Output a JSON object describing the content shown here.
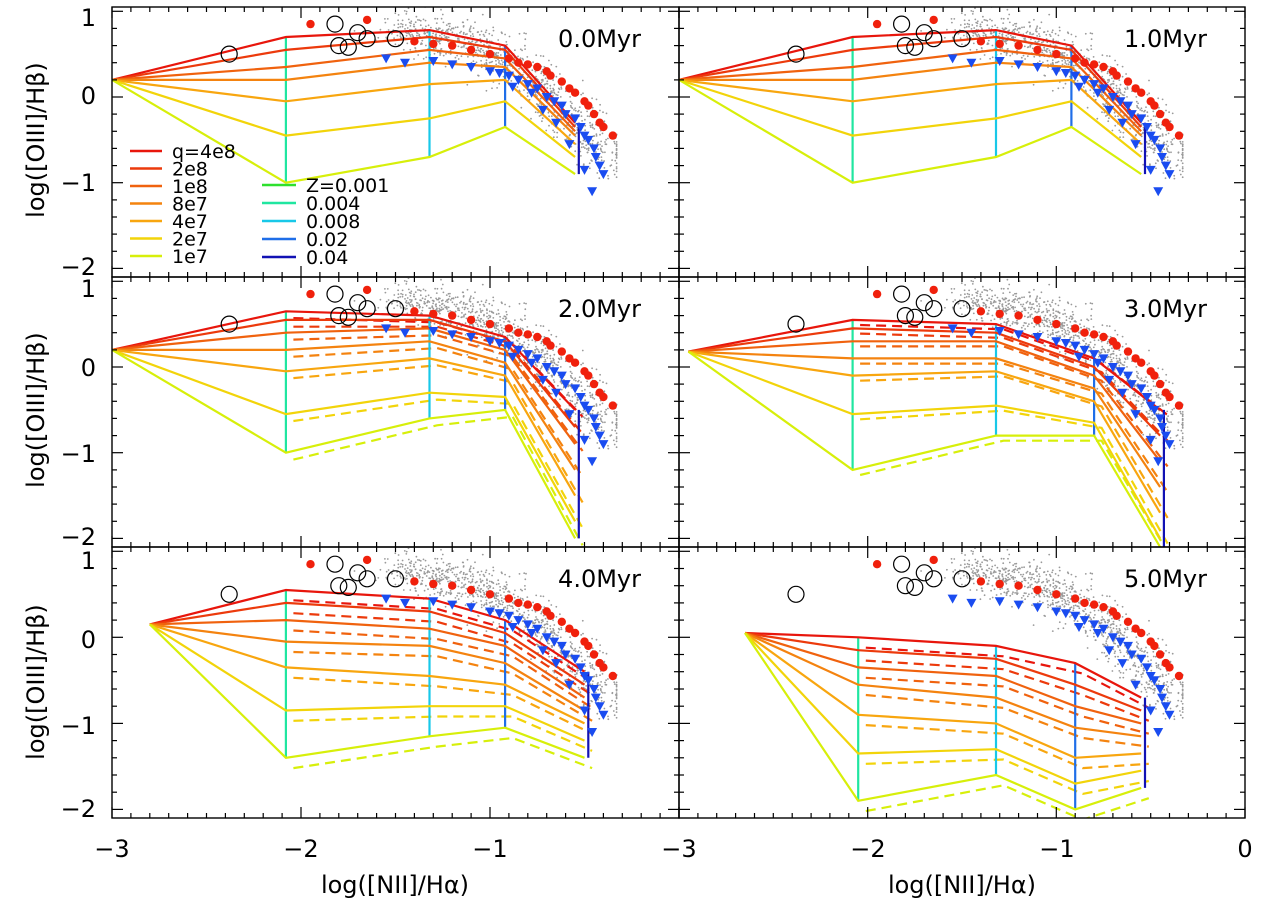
{
  "figure": {
    "xlabel": "log([NII]/Hα)",
    "ylabel": "log([OIII]/Hβ)",
    "xlim": [
      -3,
      0
    ],
    "ylim": [
      -2.1,
      1.05
    ],
    "x_ticks": [
      "−3",
      "−2",
      "−1",
      "−3",
      "−2",
      "−1",
      "0"
    ],
    "y_ticks": [
      "1",
      "0",
      "−1",
      "−2"
    ]
  },
  "legend": {
    "q_label_prefix": "q=",
    "q_entries": [
      {
        "label": "4e8",
        "color": "#e8160c"
      },
      {
        "label": "2e8",
        "color": "#ec3a0c"
      },
      {
        "label": "1e8",
        "color": "#f0620e"
      },
      {
        "label": "8e7",
        "color": "#f4830f"
      },
      {
        "label": "4e7",
        "color": "#f8a60f"
      },
      {
        "label": "2e7",
        "color": "#f2d40a"
      },
      {
        "label": "1e7",
        "color": "#d7ef0a"
      }
    ],
    "z_label_prefix": "Z=",
    "z_entries": [
      {
        "label": "0.001",
        "color": "#2ee02e"
      },
      {
        "label": "0.004",
        "color": "#20e6a0"
      },
      {
        "label": "0.008",
        "color": "#18c8e8"
      },
      {
        "label": "0.02",
        "color": "#1f6ee8"
      },
      {
        "label": "0.04",
        "color": "#1212b4"
      }
    ]
  },
  "chart_data": [
    {
      "type": "line",
      "panel_label": "0.0Myr",
      "shift": {
        "x": 0.0,
        "y": 0.0,
        "steep": 0.0
      },
      "dashed_offset": 0.0,
      "x_by_Z": [
        -3.0,
        -2.08,
        -1.32,
        -0.92,
        -0.55
      ],
      "y_by_q_Z": [
        [
          0.2,
          0.7,
          0.78,
          0.6,
          -0.3
        ],
        [
          0.2,
          0.55,
          0.7,
          0.55,
          -0.35
        ],
        [
          0.2,
          0.35,
          0.55,
          0.45,
          -0.4
        ],
        [
          0.2,
          0.2,
          0.4,
          0.35,
          -0.45
        ],
        [
          0.2,
          -0.05,
          0.15,
          0.2,
          -0.55
        ],
        [
          0.2,
          -0.45,
          -0.25,
          -0.05,
          -0.7
        ],
        [
          0.2,
          -1.0,
          -0.7,
          -0.35,
          -0.9
        ]
      ]
    },
    {
      "type": "line",
      "panel_label": "1.0Myr",
      "shift": {
        "x": 0.0,
        "y": 0.0,
        "steep": 0.0
      },
      "dashed_offset": 0.0,
      "x_by_Z": [
        -3.0,
        -2.08,
        -1.32,
        -0.92,
        -0.55
      ],
      "y_by_q_Z": [
        [
          0.2,
          0.7,
          0.78,
          0.6,
          -0.3
        ],
        [
          0.2,
          0.55,
          0.7,
          0.55,
          -0.35
        ],
        [
          0.2,
          0.35,
          0.55,
          0.45,
          -0.4
        ],
        [
          0.2,
          0.2,
          0.4,
          0.35,
          -0.45
        ],
        [
          0.2,
          -0.05,
          0.15,
          0.2,
          -0.55
        ],
        [
          0.2,
          -0.45,
          -0.25,
          -0.05,
          -0.7
        ],
        [
          0.2,
          -1.0,
          -0.7,
          -0.35,
          -0.9
        ]
      ]
    },
    {
      "type": "line",
      "panel_label": "2.0Myr",
      "shift": {
        "x": 0.0,
        "y": 0.0,
        "steep": 1.0
      },
      "dashed_offset": -0.08,
      "x_by_Z": [
        -3.0,
        -2.08,
        -1.32,
        -0.92,
        -0.55
      ],
      "y_by_q_Z": [
        [
          0.2,
          0.65,
          0.6,
          0.35,
          -0.5
        ],
        [
          0.2,
          0.55,
          0.55,
          0.3,
          -0.7
        ],
        [
          0.2,
          0.4,
          0.45,
          0.2,
          -0.9
        ],
        [
          0.2,
          0.2,
          0.3,
          0.05,
          -1.2
        ],
        [
          0.2,
          -0.05,
          0.1,
          -0.1,
          -1.5
        ],
        [
          0.2,
          -0.55,
          -0.3,
          -0.35,
          -1.8
        ],
        [
          0.2,
          -1.0,
          -0.6,
          -0.5,
          -2.0
        ]
      ]
    },
    {
      "type": "line",
      "panel_label": "3.0Myr",
      "shift": {
        "x": 0.0,
        "y": -0.05,
        "steep": 1.0
      },
      "dashed_offset": -0.06,
      "x_by_Z": [
        -2.95,
        -2.08,
        -1.32,
        -0.8,
        -0.45
      ],
      "y_by_q_Z": [
        [
          0.18,
          0.55,
          0.5,
          0.1,
          -0.5
        ],
        [
          0.18,
          0.45,
          0.4,
          0.0,
          -0.8
        ],
        [
          0.18,
          0.3,
          0.3,
          -0.1,
          -1.1
        ],
        [
          0.18,
          0.1,
          0.1,
          -0.25,
          -1.4
        ],
        [
          0.18,
          -0.1,
          -0.05,
          -0.4,
          -1.7
        ],
        [
          0.18,
          -0.55,
          -0.45,
          -0.65,
          -2.0
        ],
        [
          0.18,
          -1.2,
          -0.8,
          -0.8,
          -2.1
        ]
      ]
    },
    {
      "type": "line",
      "panel_label": "4.0Myr",
      "shift": {
        "x": 0.0,
        "y": 0.0,
        "steep": 0.0
      },
      "dashed_offset": -0.12,
      "x_by_Z": [
        -2.8,
        -2.08,
        -1.32,
        -0.92,
        -0.5
      ],
      "y_by_q_Z": [
        [
          0.15,
          0.55,
          0.45,
          0.2,
          -0.4
        ],
        [
          0.15,
          0.4,
          0.3,
          0.05,
          -0.55
        ],
        [
          0.15,
          0.2,
          0.1,
          -0.1,
          -0.7
        ],
        [
          0.15,
          -0.05,
          -0.1,
          -0.3,
          -0.85
        ],
        [
          0.15,
          -0.35,
          -0.45,
          -0.55,
          -1.0
        ],
        [
          0.15,
          -0.85,
          -0.8,
          -0.8,
          -1.2
        ],
        [
          0.15,
          -1.4,
          -1.15,
          -1.05,
          -1.4
        ]
      ]
    },
    {
      "type": "line",
      "panel_label": "5.0Myr",
      "shift": {
        "x": 0.0,
        "y": 0.0,
        "steep": 0.0
      },
      "dashed_offset": -0.12,
      "x_by_Z": [
        -2.65,
        -2.05,
        -1.32,
        -0.9,
        -0.55
      ],
      "y_by_q_Z": [
        [
          0.05,
          0.0,
          -0.1,
          -0.3,
          -0.7
        ],
        [
          0.05,
          -0.15,
          -0.25,
          -0.55,
          -0.85
        ],
        [
          0.05,
          -0.35,
          -0.45,
          -0.8,
          -1.0
        ],
        [
          0.05,
          -0.55,
          -0.7,
          -1.05,
          -1.15
        ],
        [
          0.05,
          -0.9,
          -1.0,
          -1.4,
          -1.35
        ],
        [
          0.05,
          -1.35,
          -1.3,
          -1.7,
          -1.55
        ],
        [
          0.05,
          -1.9,
          -1.6,
          -2.0,
          -1.75
        ]
      ]
    }
  ],
  "observations": {
    "open_circles": [
      [
        -2.38,
        0.5
      ],
      [
        -1.82,
        0.85
      ],
      [
        -1.7,
        0.75
      ],
      [
        -1.65,
        0.68
      ],
      [
        -1.8,
        0.6
      ],
      [
        -1.75,
        0.58
      ],
      [
        -1.5,
        0.68
      ]
    ],
    "red_dots": [
      [
        -1.95,
        0.85
      ],
      [
        -1.65,
        0.9
      ],
      [
        -1.4,
        0.65
      ],
      [
        -1.3,
        0.62
      ],
      [
        -1.2,
        0.6
      ],
      [
        -1.1,
        0.55
      ],
      [
        -1.0,
        0.5
      ],
      [
        -0.9,
        0.45
      ],
      [
        -0.85,
        0.4
      ],
      [
        -0.8,
        0.38
      ],
      [
        -0.75,
        0.35
      ],
      [
        -0.7,
        0.3
      ],
      [
        -0.68,
        0.25
      ],
      [
        -0.62,
        0.18
      ],
      [
        -0.58,
        0.1
      ],
      [
        -0.55,
        0.05
      ],
      [
        -0.5,
        -0.05
      ],
      [
        -0.48,
        -0.1
      ],
      [
        -0.45,
        -0.2
      ],
      [
        -0.42,
        -0.3
      ],
      [
        -0.4,
        -0.35
      ],
      [
        -0.35,
        -0.45
      ]
    ],
    "blue_triangles": [
      [
        -1.55,
        0.45
      ],
      [
        -1.45,
        0.4
      ],
      [
        -1.3,
        0.42
      ],
      [
        -1.2,
        0.38
      ],
      [
        -1.1,
        0.35
      ],
      [
        -1.0,
        0.3
      ],
      [
        -0.95,
        0.28
      ],
      [
        -0.9,
        0.25
      ],
      [
        -0.85,
        0.2
      ],
      [
        -0.8,
        0.15
      ],
      [
        -0.75,
        0.1
      ],
      [
        -0.7,
        0.0
      ],
      [
        -0.66,
        -0.05
      ],
      [
        -0.62,
        -0.1
      ],
      [
        -0.6,
        -0.2
      ],
      [
        -0.55,
        -0.25
      ],
      [
        -0.52,
        -0.35
      ],
      [
        -0.5,
        -0.45
      ],
      [
        -0.48,
        -0.5
      ],
      [
        -0.45,
        -0.6
      ],
      [
        -0.44,
        -0.7
      ],
      [
        -0.42,
        -0.8
      ],
      [
        -0.4,
        -0.9
      ],
      [
        -0.46,
        -1.1
      ],
      [
        -0.5,
        -0.85
      ],
      [
        -0.58,
        -0.55
      ],
      [
        -0.65,
        -0.3
      ],
      [
        -0.72,
        -0.15
      ],
      [
        -0.78,
        0.05
      ],
      [
        -0.88,
        0.12
      ]
    ]
  }
}
